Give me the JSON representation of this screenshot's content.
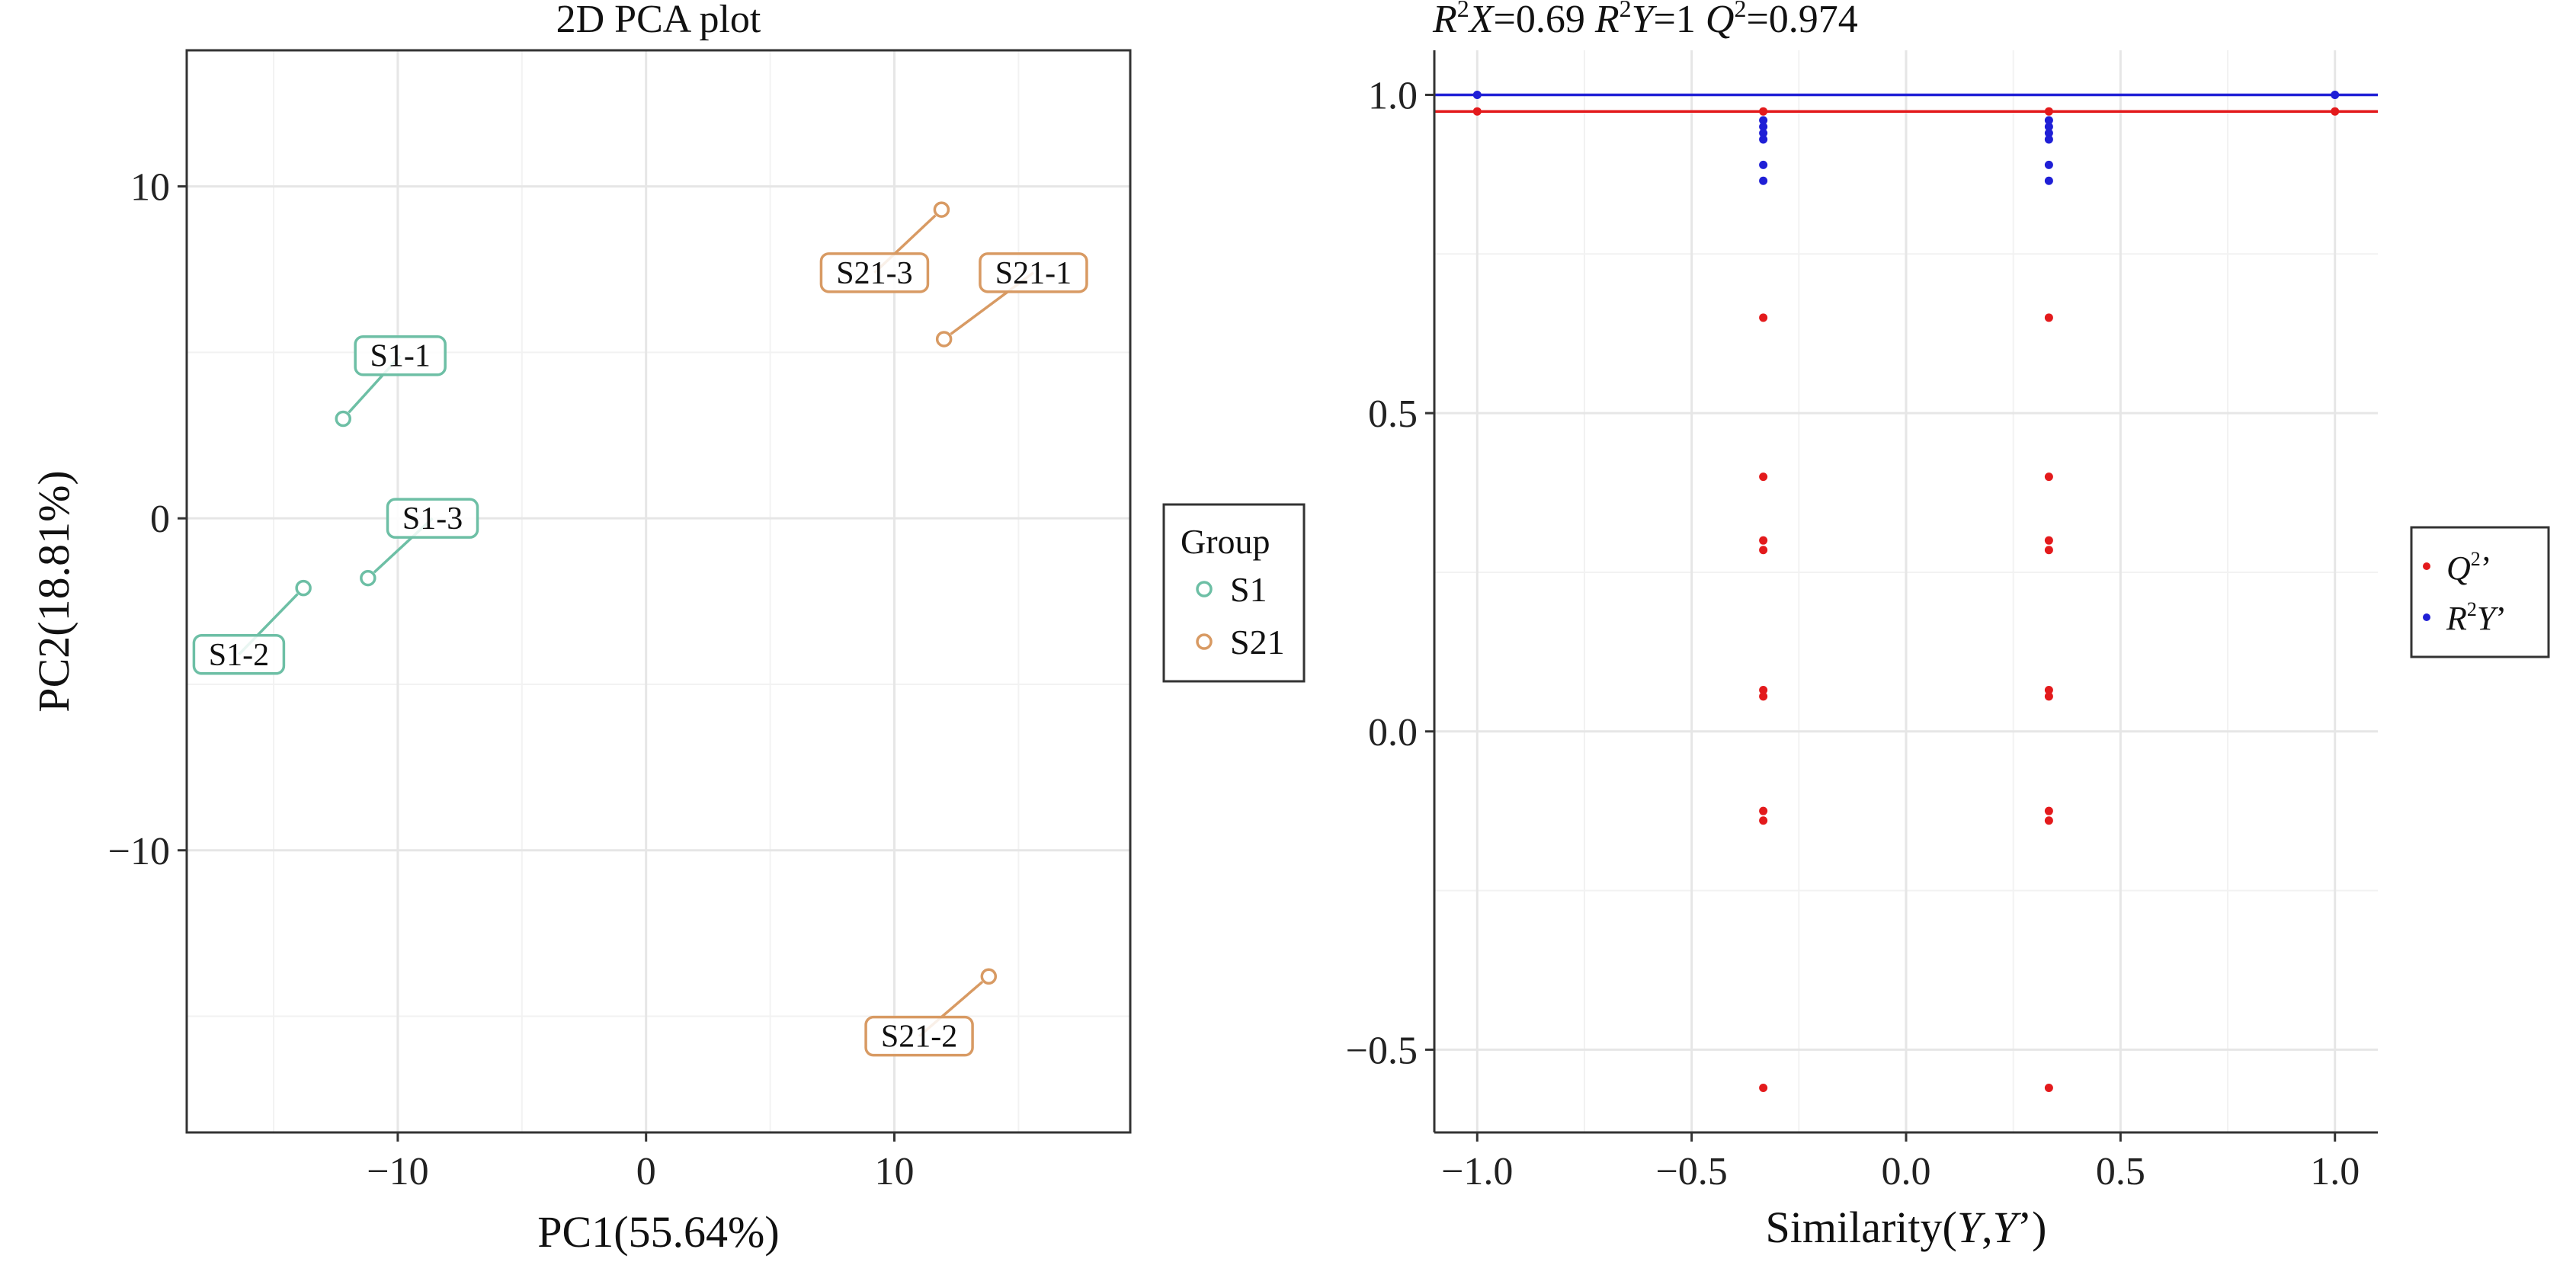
{
  "chart_data": [
    {
      "type": "scatter",
      "title": "2D PCA plot",
      "xlabel": "PC1(55.64%)",
      "ylabel": "PC2(18.81%)",
      "xlim": [
        -18.5,
        19.5
      ],
      "ylim": [
        -18.5,
        14.1
      ],
      "xticks": [
        -10,
        0,
        10
      ],
      "xtick_labels": [
        "−10",
        "0",
        "10"
      ],
      "yticks": [
        -10,
        0,
        10
      ],
      "ytick_labels": [
        "−10",
        "0",
        "10"
      ],
      "grid": true,
      "legend": {
        "title": "Group",
        "placement": "right",
        "entries": [
          {
            "name": "S1",
            "color": "#6dbfa5"
          },
          {
            "name": "S21",
            "color": "#d89a63"
          }
        ]
      },
      "series": [
        {
          "name": "S1",
          "color": "#6dbfa5",
          "points": [
            {
              "label": "S1-1",
              "x": -12.2,
              "y": 3.0,
              "label_x": -9.9,
              "label_y": 4.9
            },
            {
              "label": "S1-2",
              "x": -13.8,
              "y": -2.1,
              "label_x": -16.4,
              "label_y": -4.1
            },
            {
              "label": "S1-3",
              "x": -11.2,
              "y": -1.8,
              "label_x": -8.6,
              "label_y": 0.0
            }
          ]
        },
        {
          "name": "S21",
          "color": "#d89a63",
          "points": [
            {
              "label": "S21-1",
              "x": 12.0,
              "y": 5.4,
              "label_x": 15.6,
              "label_y": 7.4
            },
            {
              "label": "S21-2",
              "x": 13.8,
              "y": -13.8,
              "label_x": 11.0,
              "label_y": -15.6
            },
            {
              "label": "S21-3",
              "x": 11.9,
              "y": 9.3,
              "label_x": 9.2,
              "label_y": 7.4
            }
          ]
        }
      ]
    },
    {
      "type": "scatter",
      "title": "R²X=0.69 R²Y=1 Q²=0.974",
      "title_parts": {
        "r2x_label": "R",
        "r2x_sup": "2",
        "r2x_var": "X",
        "r2x_value": "=0.69 ",
        "r2y_label": "R",
        "r2y_sup": "2",
        "r2y_var": "Y",
        "r2y_value": "=1 ",
        "q2_label": "Q",
        "q2_sup": "2",
        "q2_value": "=0.974"
      },
      "xlabel": "Similarity(Y,Y’)",
      "xlabel_parts": {
        "prefix": "Similarity(",
        "var1": "Y",
        "sep": ",",
        "var2": "Y",
        "suffix": "’)"
      },
      "xlim": [
        -1.1,
        1.1
      ],
      "ylim": [
        -0.63,
        1.07
      ],
      "xticks": [
        -1.0,
        -0.5,
        0.0,
        0.5,
        1.0
      ],
      "xtick_labels": [
        "−1.0",
        "−0.5",
        "0.0",
        "0.5",
        "1.0"
      ],
      "yticks": [
        -0.5,
        0.0,
        0.5,
        1.0
      ],
      "ytick_labels": [
        "−0.5",
        "0.0",
        "0.5",
        "1.0"
      ],
      "grid": true,
      "legend": {
        "placement": "right",
        "entries": [
          {
            "name": "Q²’",
            "letter": "Q",
            "sup": "2",
            "suffix": "’",
            "color": "#e31a1c"
          },
          {
            "name": "R²Y’",
            "letter": "R",
            "sup": "2",
            "var": "Y",
            "suffix": "’",
            "color": "#1f1fd6"
          }
        ]
      },
      "reference_lines": [
        {
          "series": "R²Y’",
          "intercept": 1.0,
          "slope": 0.0,
          "color": "#1f1fd6"
        },
        {
          "series": "Q²’",
          "intercept": 0.974,
          "slope": 0.0,
          "color": "#e31a1c"
        }
      ],
      "series": [
        {
          "name": "R²Y’",
          "color": "#1f1fd6",
          "x": [
            -1.0,
            -0.333,
            -0.333,
            -0.333,
            -0.333,
            -0.333,
            -0.333,
            0.333,
            0.333,
            0.333,
            0.333,
            0.333,
            0.333,
            1.0
          ],
          "y": [
            1.0,
            0.96,
            0.95,
            0.94,
            0.93,
            0.89,
            0.865,
            0.96,
            0.95,
            0.94,
            0.93,
            0.89,
            0.865,
            1.0
          ]
        },
        {
          "name": "Q²’",
          "color": "#e31a1c",
          "x": [
            -1.0,
            -0.333,
            -0.333,
            -0.333,
            -0.333,
            -0.333,
            -0.333,
            -0.333,
            -0.333,
            -0.333,
            -0.333,
            0.333,
            0.333,
            0.333,
            0.333,
            0.333,
            0.333,
            0.333,
            0.333,
            0.333,
            0.333,
            1.0
          ],
          "y": [
            0.974,
            0.974,
            0.65,
            0.4,
            0.3,
            0.285,
            0.065,
            0.055,
            -0.125,
            -0.14,
            -0.56,
            0.974,
            0.65,
            0.4,
            0.3,
            0.285,
            0.065,
            0.055,
            -0.125,
            -0.14,
            -0.56,
            0.974
          ]
        }
      ]
    }
  ]
}
